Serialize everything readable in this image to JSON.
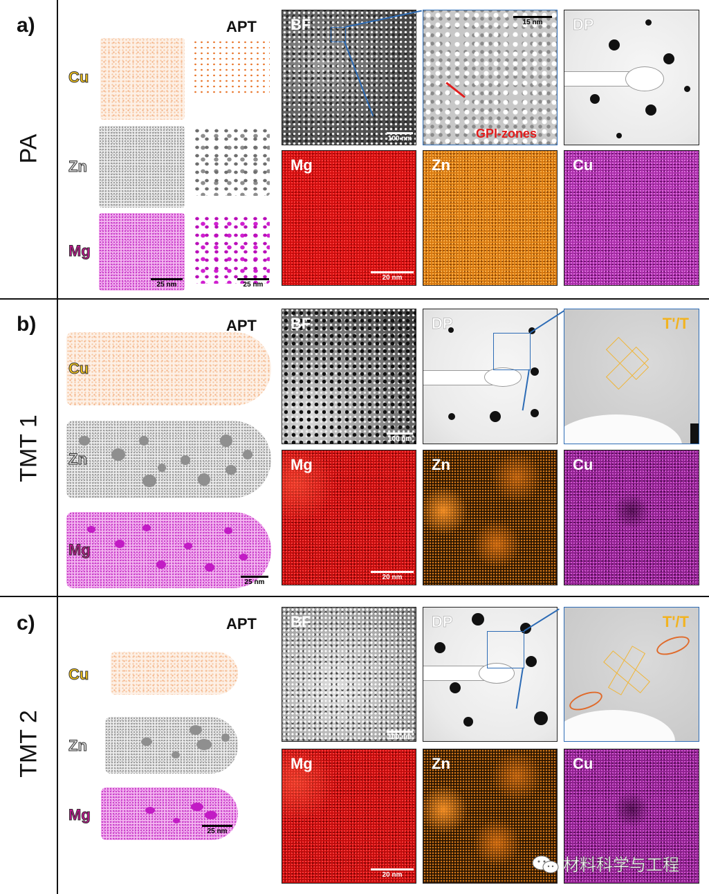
{
  "rows": [
    {
      "letter": "a)",
      "name": "PA",
      "apt_label": "APT",
      "elements": [
        "Cu",
        "Zn",
        "Mg"
      ],
      "apt_scale": "25 nm",
      "apt_cluster_scale": "25 nm",
      "top_panels": [
        {
          "label": "BF",
          "scale": "100 nm"
        },
        {
          "label": "",
          "scale": "15 nm",
          "annotation": "GPI-zones"
        },
        {
          "label": "DP",
          "scale": ""
        }
      ],
      "bottom_panels": [
        {
          "label": "Mg",
          "scale": "20 nm"
        },
        {
          "label": "Zn",
          "scale": ""
        },
        {
          "label": "Cu",
          "scale": ""
        }
      ]
    },
    {
      "letter": "b)",
      "name": "TMT 1",
      "apt_label": "APT",
      "elements": [
        "Cu",
        "Zn",
        "Mg"
      ],
      "apt_scale": "25 nm",
      "top_panels": [
        {
          "label": "BF",
          "scale": "100 nm"
        },
        {
          "label": "DP",
          "scale": ""
        },
        {
          "label": "T'/T",
          "scale": ""
        }
      ],
      "bottom_panels": [
        {
          "label": "Mg",
          "scale": "20 nm"
        },
        {
          "label": "Zn",
          "scale": ""
        },
        {
          "label": "Cu",
          "scale": ""
        }
      ]
    },
    {
      "letter": "c)",
      "name": "TMT 2",
      "apt_label": "APT",
      "elements": [
        "Cu",
        "Zn",
        "Mg"
      ],
      "apt_scale": "25 nm",
      "top_panels": [
        {
          "label": "BF",
          "scale": "100 nm"
        },
        {
          "label": "DP",
          "scale": ""
        },
        {
          "label": "T'/T",
          "scale": ""
        }
      ],
      "bottom_panels": [
        {
          "label": "Mg",
          "scale": "20 nm"
        },
        {
          "label": "Zn",
          "scale": ""
        },
        {
          "label": "Cu",
          "scale": ""
        }
      ]
    }
  ],
  "watermark": "材料科学与工程",
  "colors": {
    "zoom_box": "#2c6bb5",
    "gpi_arrow": "#e21d1d",
    "kite": "#f0b536",
    "precipitate_circle": "#e06a2a"
  }
}
